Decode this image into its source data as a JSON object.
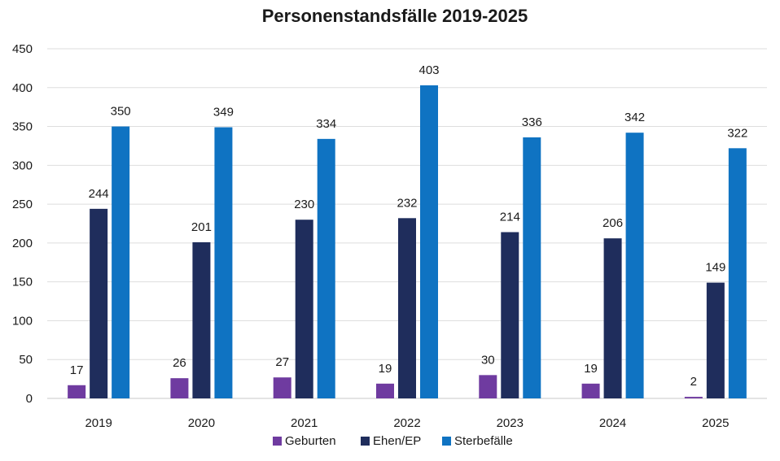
{
  "chart_data": {
    "type": "bar",
    "title": "Personenstandsfälle 2019-2025",
    "categories": [
      "2019",
      "2020",
      "2021",
      "2022",
      "2023",
      "2024",
      "2025"
    ],
    "series": [
      {
        "name": "Geburten",
        "color": "#6f3ba0",
        "values": [
          17,
          26,
          27,
          19,
          30,
          19,
          2
        ]
      },
      {
        "name": "Ehen/EP",
        "color": "#1f2d5c",
        "values": [
          244,
          201,
          230,
          232,
          214,
          206,
          149
        ]
      },
      {
        "name": "Sterbefälle",
        "color": "#0f73c2",
        "values": [
          350,
          349,
          334,
          403,
          336,
          342,
          322
        ]
      }
    ],
    "ylim": [
      0,
      450
    ],
    "yticks": [
      0,
      50,
      100,
      150,
      200,
      250,
      300,
      350,
      400,
      450
    ],
    "grid": true,
    "legend": "bottom",
    "xlabel": "",
    "ylabel": ""
  }
}
